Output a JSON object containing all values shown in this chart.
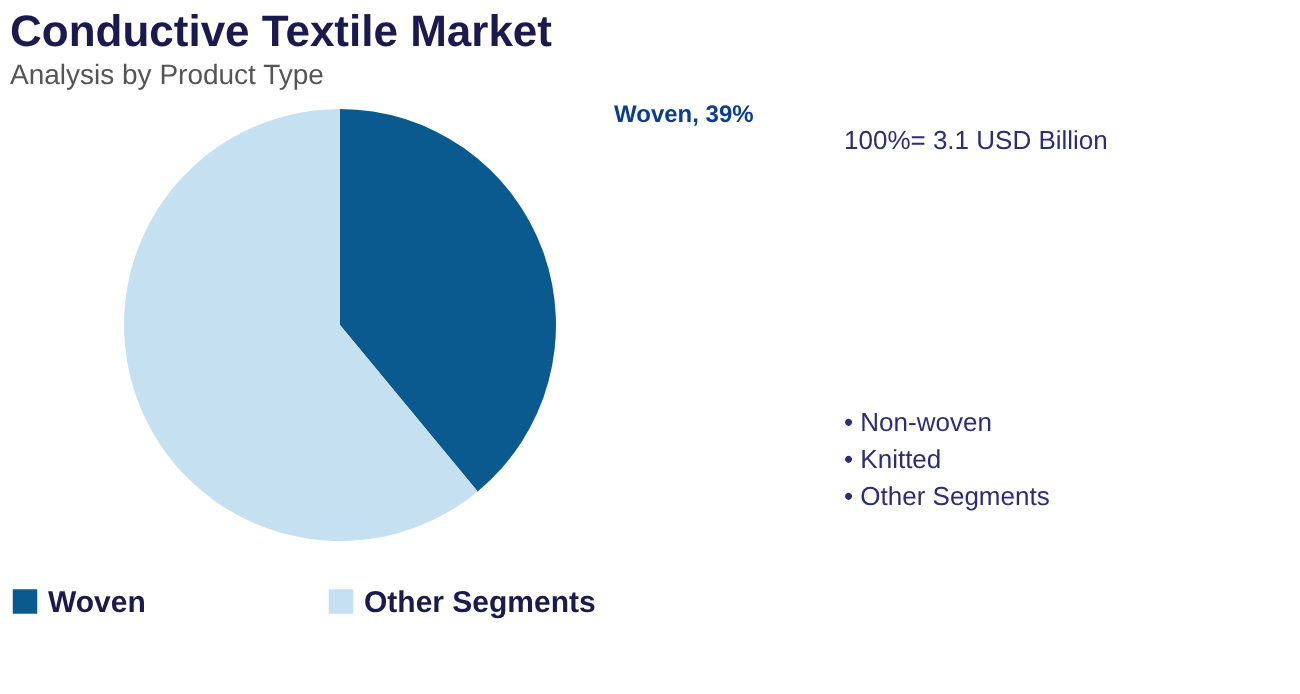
{
  "chart_data": {
    "type": "pie",
    "title": "Conductive Textile Market",
    "subtitle": "Analysis by Product Type",
    "categories": [
      "Woven",
      "Other Segments"
    ],
    "values": [
      39,
      61
    ],
    "colors": [
      "#0b5a8f",
      "#c5e1f1"
    ],
    "value_labels": [
      "Woven, 39%",
      null
    ],
    "legend": "bottom",
    "annotations": [
      "100%= 3.1 USD Billion",
      "• Non-woven",
      "• Knitted",
      "• Other Segments"
    ]
  }
}
